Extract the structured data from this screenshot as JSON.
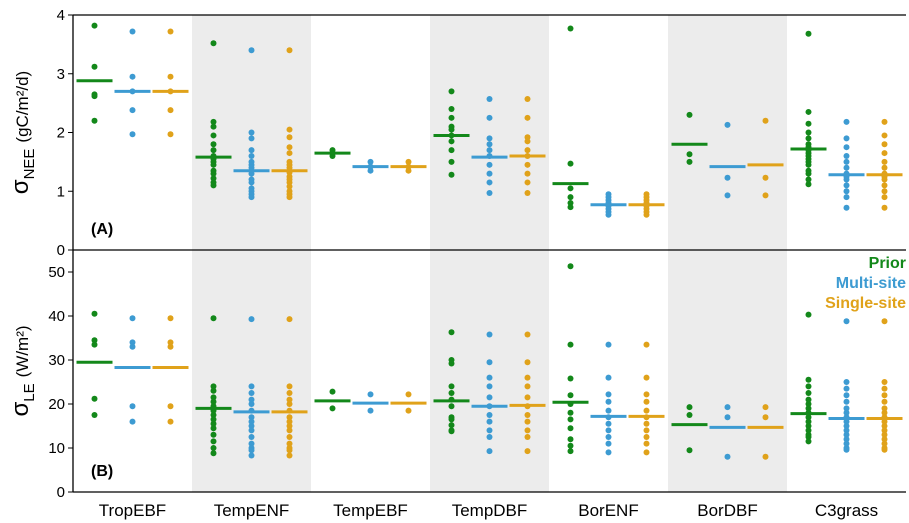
{
  "chart_data": {
    "type": "scatter",
    "categories": [
      "TropEBF",
      "TempENF",
      "TempEBF",
      "TempDBF",
      "BorENF",
      "BorDBF",
      "C3grass"
    ],
    "shaded_categories": [
      "TempENF",
      "TempDBF",
      "BorDBF"
    ],
    "series": [
      {
        "name": "Prior",
        "color": "#13881a"
      },
      {
        "name": "Multi-site",
        "color": "#3d9bd2"
      },
      {
        "name": "Single-site",
        "color": "#e0a21a"
      }
    ],
    "legend_position": "right",
    "panels": [
      {
        "label": "(A)",
        "ylabel_symbol": "σ",
        "ylabel_sub": "NEE",
        "ylabel_units": "(gC/m²/d)",
        "ylim": [
          0,
          4
        ],
        "yticks": [
          "0",
          "1",
          "2",
          "3",
          "4"
        ],
        "points": [
          [
            [
              3.82,
              3.12,
              2.65,
              2.62,
              2.2
            ],
            [
              3.72,
              2.95,
              2.7,
              2.38,
              1.97
            ],
            [
              3.72,
              2.95,
              2.7,
              2.38,
              1.97
            ]
          ],
          [
            [
              3.52,
              2.18,
              2.1,
              1.95,
              1.8,
              1.7,
              1.6,
              1.55,
              1.5,
              1.45,
              1.35,
              1.3,
              1.22,
              1.15,
              1.1
            ],
            [
              3.4,
              2.0,
              1.9,
              1.7,
              1.6,
              1.5,
              1.45,
              1.4,
              1.35,
              1.3,
              1.2,
              1.15,
              1.05,
              1.0,
              0.95,
              0.9
            ],
            [
              3.4,
              2.05,
              1.92,
              1.75,
              1.65,
              1.5,
              1.45,
              1.4,
              1.32,
              1.25,
              1.2,
              1.15,
              1.08,
              1.0,
              0.95,
              0.9
            ]
          ],
          [
            [
              1.7,
              1.65,
              1.6
            ],
            [
              1.5,
              1.42,
              1.35
            ],
            [
              1.5,
              1.42,
              1.35
            ]
          ],
          [
            [
              2.7,
              2.4,
              2.25,
              2.1,
              2.05,
              1.95,
              1.85,
              1.7,
              1.5,
              1.28
            ],
            [
              2.57,
              2.25,
              1.9,
              1.8,
              1.7,
              1.6,
              1.45,
              1.3,
              1.15,
              0.97
            ],
            [
              2.57,
              2.25,
              1.92,
              1.85,
              1.7,
              1.6,
              1.45,
              1.3,
              1.15,
              0.97
            ]
          ],
          [
            [
              3.77,
              1.47,
              1.05,
              0.9,
              0.8,
              0.73
            ],
            [
              0.95,
              0.9,
              0.85,
              0.8,
              0.75,
              0.7,
              0.65,
              0.6
            ],
            [
              0.95,
              0.9,
              0.85,
              0.8,
              0.75,
              0.7,
              0.65,
              0.6
            ]
          ],
          [
            [
              2.3,
              1.63,
              1.5
            ],
            [
              2.13,
              1.23,
              0.93
            ],
            [
              2.2,
              1.23,
              0.93
            ]
          ],
          [
            [
              3.68,
              2.35,
              2.15,
              2.0,
              1.9,
              1.8,
              1.75,
              1.7,
              1.65,
              1.6,
              1.55,
              1.5,
              1.45,
              1.35,
              1.3,
              1.2,
              1.12
            ],
            [
              2.18,
              1.9,
              1.75,
              1.6,
              1.5,
              1.4,
              1.3,
              1.25,
              1.2,
              1.1,
              1.0,
              0.9,
              0.72
            ],
            [
              2.18,
              1.95,
              1.8,
              1.65,
              1.5,
              1.4,
              1.3,
              1.25,
              1.2,
              1.1,
              1.0,
              0.9,
              0.72
            ]
          ]
        ],
        "means": [
          [
            2.88,
            2.7,
            2.7
          ],
          [
            1.58,
            1.35,
            1.35
          ],
          [
            1.65,
            1.42,
            1.42
          ],
          [
            1.95,
            1.58,
            1.6
          ],
          [
            1.13,
            0.77,
            0.77
          ],
          [
            1.8,
            1.42,
            1.45
          ],
          [
            1.72,
            1.28,
            1.28
          ]
        ]
      },
      {
        "label": "(B)",
        "ylabel_symbol": "σ",
        "ylabel_sub": "LE",
        "ylabel_units": "(W/m²)",
        "ylim": [
          0,
          55
        ],
        "yticks": [
          "0",
          "10",
          "20",
          "30",
          "40",
          "50"
        ],
        "points": [
          [
            [
              40.5,
              34.5,
              33.5,
              21.2,
              17.5
            ],
            [
              39.5,
              34.0,
              33.0,
              19.5,
              16.0
            ],
            [
              39.5,
              34.0,
              33.0,
              19.5,
              16.0
            ]
          ],
          [
            [
              39.5,
              24.0,
              23.0,
              21.5,
              20.5,
              19.5,
              18.5,
              17.5,
              16.5,
              15.5,
              14.5,
              13.0,
              11.5,
              10.0,
              8.8
            ],
            [
              39.3,
              24.0,
              22.5,
              21.0,
              20.0,
              18.5,
              17.0,
              16.0,
              15.0,
              14.0,
              12.5,
              11.0,
              10.0,
              9.5,
              8.3
            ],
            [
              39.3,
              24.0,
              22.5,
              21.0,
              20.0,
              18.5,
              17.0,
              16.0,
              15.0,
              14.0,
              12.5,
              11.0,
              10.0,
              9.5,
              8.3
            ]
          ],
          [
            [
              22.8,
              19.0
            ],
            [
              22.2,
              18.5
            ],
            [
              22.2,
              18.5
            ]
          ],
          [
            [
              36.3,
              30.0,
              29.2,
              24.0,
              22.5,
              21.0,
              19.5,
              17.0,
              16.5,
              15.2,
              14.0,
              13.8
            ],
            [
              35.8,
              29.5,
              26.0,
              24.0,
              21.5,
              19.5,
              17.5,
              16.0,
              14.0,
              12.5,
              9.3
            ],
            [
              35.8,
              29.5,
              26.0,
              24.0,
              21.5,
              19.5,
              17.5,
              16.0,
              14.0,
              12.5,
              9.3
            ]
          ],
          [
            [
              51.3,
              33.5,
              25.8,
              22.0,
              20.0,
              18.0,
              16.5,
              14.5,
              12.0,
              10.5,
              9.3
            ],
            [
              33.5,
              26.0,
              22.2,
              20.5,
              18.5,
              17.0,
              15.5,
              14.0,
              12.5,
              11.0,
              9.0
            ],
            [
              33.5,
              26.0,
              22.2,
              20.5,
              18.5,
              17.0,
              15.5,
              14.0,
              12.5,
              11.0,
              9.0
            ]
          ],
          [
            [
              19.3,
              17.5,
              9.5
            ],
            [
              19.3,
              17.0,
              8.0
            ],
            [
              19.3,
              17.0,
              8.0
            ]
          ],
          [
            [
              40.3,
              25.5,
              24.0,
              22.5,
              21.0,
              20.0,
              19.0,
              18.0,
              17.0,
              16.0,
              15.0,
              14.0,
              13.0,
              12.5,
              11.5
            ],
            [
              38.8,
              25.0,
              23.5,
              22.0,
              20.5,
              19.0,
              18.0,
              17.0,
              16.0,
              15.0,
              14.0,
              13.0,
              12.0,
              11.0,
              10.0,
              9.6
            ],
            [
              38.8,
              25.0,
              23.5,
              22.0,
              20.5,
              19.0,
              18.0,
              17.0,
              16.0,
              15.0,
              14.0,
              13.0,
              12.0,
              11.0,
              10.0,
              9.6
            ]
          ]
        ],
        "means": [
          [
            29.5,
            28.3,
            28.3
          ],
          [
            19.0,
            18.2,
            18.2
          ],
          [
            20.7,
            20.2,
            20.2
          ],
          [
            20.7,
            19.5,
            19.7
          ],
          [
            20.4,
            17.2,
            17.2
          ],
          [
            15.3,
            14.7,
            14.7
          ],
          [
            17.8,
            16.7,
            16.7
          ]
        ]
      }
    ]
  }
}
